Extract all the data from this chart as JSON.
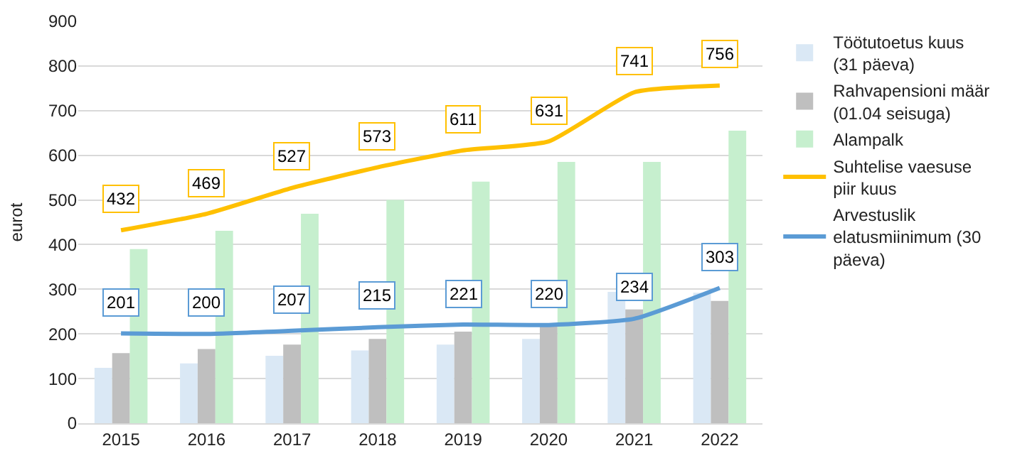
{
  "chart_data": {
    "type": "bar",
    "ylabel": "eurot",
    "categories": [
      "2015",
      "2016",
      "2017",
      "2018",
      "2019",
      "2020",
      "2021",
      "2022"
    ],
    "series": [
      {
        "name": "Töötutoetus kuus (31 päeva)",
        "color": "#dae8f5",
        "values": [
          124,
          134,
          151,
          163,
          176,
          189,
          294,
          292
        ]
      },
      {
        "name": "Rahvapensioni määr (01.04 seisuga)",
        "color": "#bfbfbf",
        "values": [
          157,
          166,
          176,
          189,
          205,
          223,
          255,
          274
        ]
      },
      {
        "name": "Alampalk",
        "color": "#c6efce",
        "values": [
          390,
          431,
          469,
          500,
          541,
          585,
          585,
          655
        ]
      },
      {
        "name": "Suhtelise vaesuse piir kuus",
        "type": "line",
        "color": "#ffc000",
        "values": [
          432,
          469,
          527,
          573,
          611,
          631,
          741,
          756
        ],
        "value_labels": [
          "432",
          "469",
          "527",
          "573",
          "611",
          "631",
          "741",
          "756"
        ]
      },
      {
        "name": "Arvestuslik elatusmiinimum (30 päeva)",
        "type": "line",
        "color": "#5b9bd5",
        "values": [
          201,
          200,
          207,
          215,
          221,
          220,
          234,
          303
        ],
        "value_labels": [
          "201",
          "200",
          "207",
          "215",
          "221",
          "220",
          "234",
          "303"
        ]
      }
    ],
    "ylim": [
      0,
      900
    ],
    "yticks": [
      0,
      100,
      200,
      300,
      400,
      500,
      600,
      700,
      800,
      900
    ],
    "grid": "y",
    "legend": "right"
  }
}
